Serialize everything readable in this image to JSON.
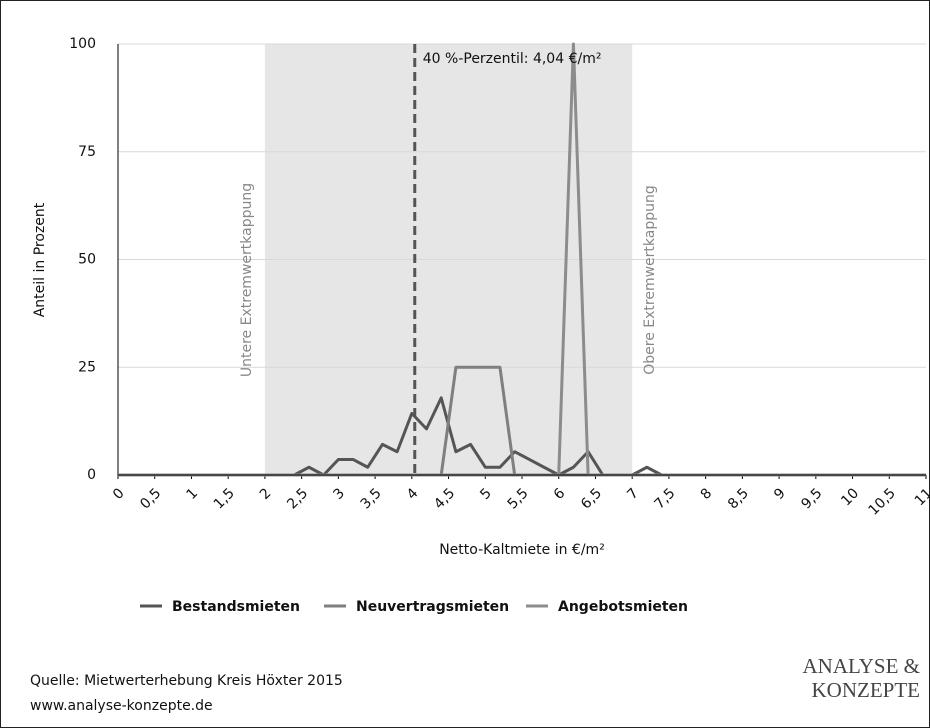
{
  "chart_data": {
    "type": "line",
    "y_label": "Anteil in Prozent",
    "x_label": "Netto-Kaltmiete in €/m²",
    "annotation": "40 %-Perzentil: 4,04 €/m²",
    "vline": 4.04,
    "shaded_range": [
      2,
      7
    ],
    "shaded_labels": [
      "Untere Extremwertkappung",
      "Obere Extremwertkappung"
    ],
    "x": [
      0,
      0.2,
      0.4,
      0.6,
      0.8,
      1,
      1.2,
      1.4,
      1.6,
      1.8,
      2,
      2.2,
      2.4,
      2.6,
      2.8,
      3,
      3.2,
      3.4,
      3.6,
      3.8,
      4,
      4.2,
      4.4,
      4.6,
      4.8,
      5,
      5.2,
      5.4,
      5.6,
      5.8,
      6,
      6.2,
      6.4,
      6.6,
      6.8,
      7,
      7.2,
      7.4,
      7.6,
      7.8,
      8,
      8.2,
      8.4,
      8.6,
      8.8,
      9,
      9.2,
      9.4,
      9.6,
      9.8,
      10,
      10.2,
      10.4,
      10.6,
      10.8,
      11
    ],
    "series": [
      {
        "name": "Bestandsmieten",
        "color": "#555555",
        "values": [
          0,
          0,
          0,
          0,
          0,
          0,
          0,
          0,
          0,
          0,
          0,
          0,
          0,
          1.8,
          0,
          3.6,
          3.6,
          1.8,
          7.1,
          5.4,
          14.3,
          10.7,
          17.9,
          5.4,
          7.1,
          1.8,
          1.8,
          5.4,
          3.6,
          1.8,
          0,
          1.8,
          5.4,
          0,
          0,
          0,
          1.8,
          0,
          0,
          0,
          0,
          0,
          0,
          0,
          0,
          0,
          0,
          0,
          0,
          0,
          0,
          0,
          0,
          0,
          0,
          0
        ]
      },
      {
        "name": "Neuvertragsmieten",
        "color": "#7f7f7f",
        "values": [
          0,
          0,
          0,
          0,
          0,
          0,
          0,
          0,
          0,
          0,
          0,
          0,
          0,
          0,
          0,
          0,
          0,
          0,
          0,
          0,
          0,
          0,
          0,
          25,
          25,
          25,
          25,
          0,
          0,
          0,
          0,
          0,
          0,
          0,
          0,
          0,
          0,
          0,
          0,
          0,
          0,
          0,
          0,
          0,
          0,
          0,
          0,
          0,
          0,
          0,
          0,
          0,
          0,
          0,
          0,
          0
        ]
      },
      {
        "name": "Angebotsmieten",
        "color": "#8c8c8c",
        "values": [
          0,
          0,
          0,
          0,
          0,
          0,
          0,
          0,
          0,
          0,
          0,
          0,
          0,
          0,
          0,
          0,
          0,
          0,
          0,
          0,
          0,
          0,
          0,
          0,
          0,
          0,
          0,
          0,
          0,
          0,
          0,
          100,
          0,
          0,
          0,
          0,
          0,
          0,
          0,
          0,
          0,
          0,
          0,
          0,
          0,
          0,
          0,
          0,
          0,
          0,
          0,
          0,
          0,
          0,
          0,
          0
        ]
      }
    ],
    "xlim": [
      0,
      11
    ],
    "xticks": [
      0,
      {
        "value": 0.5,
        "label": "0,5"
      },
      1,
      {
        "value": 1.5,
        "label": "1,5"
      },
      2,
      {
        "value": 2.5,
        "label": "2,5"
      },
      3,
      {
        "value": 3.5,
        "label": "3,5"
      },
      4,
      {
        "value": 4.5,
        "label": "4,5"
      },
      5,
      {
        "value": 5.5,
        "label": "5,5"
      },
      6,
      {
        "value": 6.5,
        "label": "6,5"
      },
      7,
      {
        "value": 7.5,
        "label": "7,5"
      },
      8,
      {
        "value": 8.5,
        "label": "8,5"
      },
      9,
      {
        "value": 9.5,
        "label": "9,5"
      },
      10,
      {
        "value": 10.5,
        "label": "10,5"
      },
      11
    ],
    "ylim": [
      0,
      100
    ],
    "yticks": [
      0,
      25,
      50,
      75,
      100
    ],
    "grid": true,
    "legend": "bottom"
  },
  "source": [
    "Quelle: Mietwerterhebung Kreis Höxter 2015",
    "www.analyse-konzepte.de"
  ],
  "logo": [
    "ANALYSE &",
    "KONZEPTE"
  ]
}
